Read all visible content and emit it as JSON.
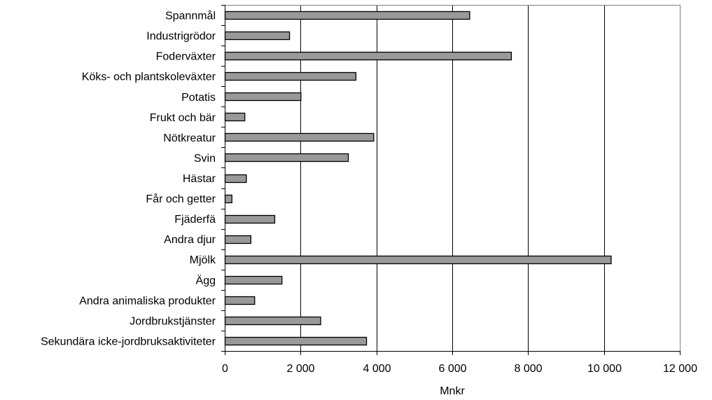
{
  "chart_data": {
    "type": "bar",
    "orientation": "horizontal",
    "categories": [
      "Spannmål",
      "Industrigrödor",
      "Foderväxter",
      "Köks- och plantskoleväxter",
      "Potatis",
      "Frukt och bär",
      "Nötkreatur",
      "Svin",
      "Hästar",
      "Får och getter",
      "Fjäderfä",
      "Andra djur",
      "Mjölk",
      "Ägg",
      "Andra animaliska produkter",
      "Jordbrukstjänster",
      "Sekundära icke-jordbruksaktiviteter"
    ],
    "values": [
      6450,
      1700,
      7550,
      3450,
      2000,
      520,
      3920,
      3250,
      560,
      180,
      1310,
      680,
      10180,
      1500,
      780,
      2520,
      3730
    ],
    "xlabel": "Mnkr",
    "ylabel": "",
    "title": "",
    "xlim": [
      0,
      12000
    ],
    "xticks": [
      0,
      2000,
      4000,
      6000,
      8000,
      10000,
      12000
    ],
    "xtick_labels": [
      "0",
      "2 000",
      "4 000",
      "6 000",
      "8 000",
      "10 000",
      "12 000"
    ],
    "grid": "vertical",
    "legend": "none",
    "bar_color": "#999999",
    "bar_edge_color": "#000000",
    "grid_color": "#000000"
  }
}
